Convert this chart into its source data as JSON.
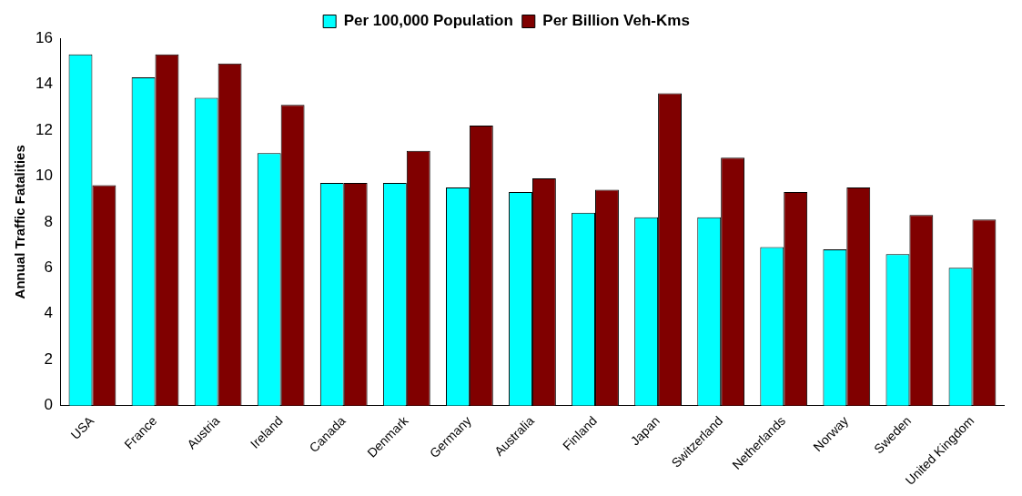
{
  "chart_data": {
    "type": "bar",
    "ylabel": "Annual Traffic Fatalities",
    "categories": [
      "USA",
      "France",
      "Austria",
      "Ireland",
      "Canada",
      "Denmark",
      "Germany",
      "Australia",
      "Finland",
      "Japan",
      "Switzerland",
      "Netherlands",
      "Norway",
      "Sweden",
      "United Kingdom"
    ],
    "series": [
      {
        "name": "Per 100,000 Population",
        "color": "#00ffff",
        "values": [
          15.3,
          14.3,
          13.4,
          11.0,
          9.7,
          9.7,
          9.5,
          9.3,
          8.4,
          8.2,
          8.2,
          6.9,
          6.8,
          6.6,
          6.0
        ]
      },
      {
        "name": "Per Billion Veh-Kms",
        "color": "#800000",
        "values": [
          9.6,
          15.3,
          14.9,
          13.1,
          9.7,
          11.1,
          12.2,
          9.9,
          9.4,
          13.6,
          10.8,
          9.3,
          9.5,
          8.3,
          8.1
        ]
      }
    ],
    "ylim": [
      0,
      16
    ],
    "yticks": [
      0,
      2,
      4,
      6,
      8,
      10,
      12,
      14,
      16
    ],
    "grid": false,
    "legend": "top"
  }
}
